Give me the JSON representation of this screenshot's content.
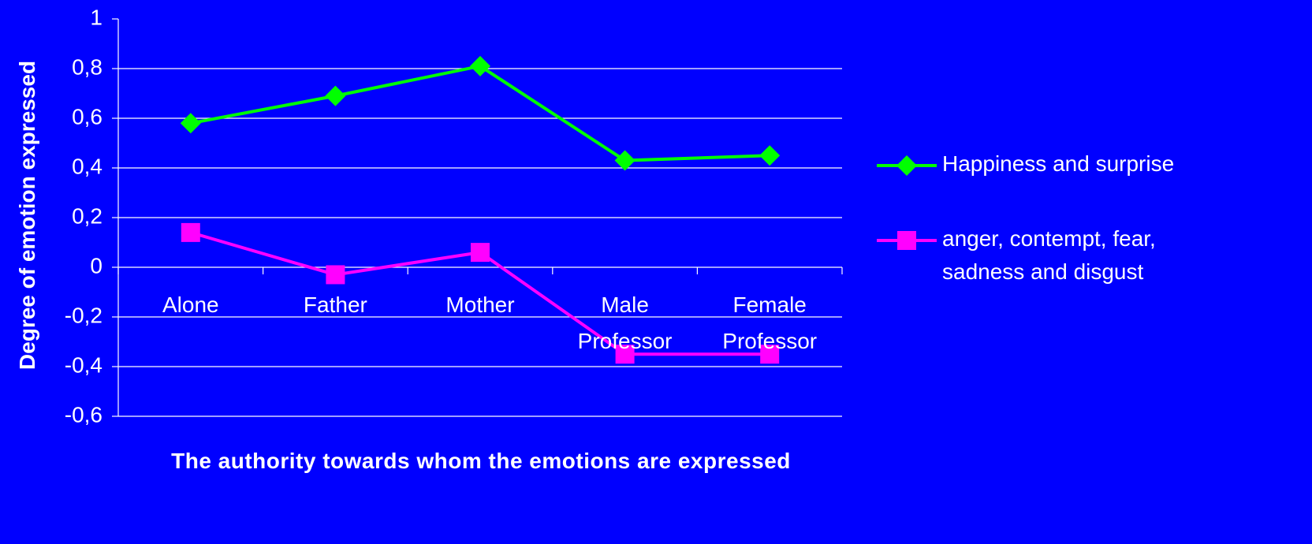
{
  "chart_data": {
    "type": "line",
    "x_label": "The authority towards whom the emotions are expressed",
    "y_label": "Degree of emotion expressed",
    "categories": [
      "Alone",
      "Father",
      "Mother",
      "Male Professor",
      "Female Professor"
    ],
    "series": [
      {
        "name": "Happiness and surprise",
        "color": "#00ff00",
        "marker": "diamond",
        "values": [
          0.58,
          0.69,
          0.81,
          0.43,
          0.45
        ]
      },
      {
        "name": "anger, contempt, fear, sadness and disgust",
        "color": "#ff00ff",
        "marker": "square",
        "values": [
          0.14,
          -0.03,
          0.06,
          -0.35,
          -0.35
        ]
      }
    ],
    "ylim": [
      -0.6,
      1
    ],
    "yticks": [
      {
        "value": -0.6,
        "label": "-0,6"
      },
      {
        "value": -0.4,
        "label": "-0,4"
      },
      {
        "value": -0.2,
        "label": "-0,2"
      },
      0,
      {
        "value": 0.2,
        "label": "0,2"
      },
      {
        "value": 0.4,
        "label": "0,4"
      },
      {
        "value": 0.6,
        "label": "0,6"
      },
      {
        "value": 0.8,
        "label": "0,8"
      },
      1
    ],
    "grid": true,
    "legend": "right",
    "background": "#0000ff"
  }
}
